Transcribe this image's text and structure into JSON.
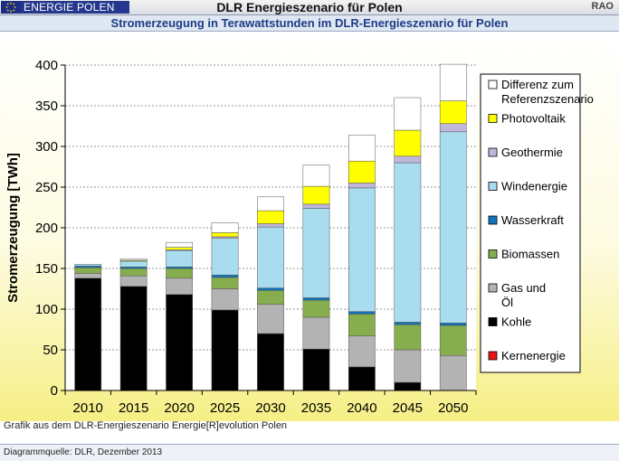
{
  "header": {
    "logo_text": "ENERGIE POLEN",
    "title": "DLR Energieszenario für Polen",
    "badge": "RAO"
  },
  "subtitle": "Stromerzeugung in Terawattstunden im DLR-Energieszenario für Polen",
  "footer": {
    "credit": "Grafik aus dem DLR-Energieszenario Energie[R]evolution Polen",
    "source": "Diagrammquelle: DLR, Dezember 2013"
  },
  "chart_data": {
    "type": "bar",
    "stacked": true,
    "title": "",
    "xlabel": "",
    "ylabel": "Stromerzeugung [TWh]",
    "ylim": [
      0,
      400
    ],
    "yticks": [
      0,
      50,
      100,
      150,
      200,
      250,
      300,
      350,
      400
    ],
    "grid": "horizontal dashed",
    "legend_position": "right",
    "categories": [
      "2010",
      "2015",
      "2020",
      "2025",
      "2030",
      "2035",
      "2040",
      "2045",
      "2050"
    ],
    "series": [
      {
        "name": "Kernenergie",
        "color": "#e8161a",
        "values": [
          0,
          0,
          0,
          0,
          0,
          0,
          0,
          0,
          0
        ]
      },
      {
        "name": "Kohle",
        "color": "#000000",
        "values": [
          138,
          128,
          118,
          99,
          70,
          51,
          29,
          10,
          0
        ]
      },
      {
        "name": "Gas und Öl",
        "color": "#b3b3b3",
        "values": [
          6,
          13,
          20,
          26,
          36,
          39,
          38,
          40,
          43
        ]
      },
      {
        "name": "Biomassen",
        "color": "#86ad4e",
        "values": [
          7,
          9,
          12,
          14,
          17,
          21,
          27,
          31,
          37
        ]
      },
      {
        "name": "Wasserkraft",
        "color": "#0f74b9",
        "values": [
          2,
          2,
          2,
          3,
          3,
          3,
          3,
          3,
          3
        ]
      },
      {
        "name": "Windenergie",
        "color": "#a9dcef",
        "values": [
          2,
          7,
          20,
          45,
          75,
          110,
          152,
          196,
          235
        ]
      },
      {
        "name": "Geothermie",
        "color": "#c0b7dd",
        "values": [
          0,
          0,
          1,
          2,
          4,
          5,
          6,
          8,
          10
        ]
      },
      {
        "name": "Photovoltaik",
        "color": "#ffff00",
        "values": [
          0,
          1,
          3,
          5,
          16,
          22,
          27,
          32,
          28
        ]
      },
      {
        "name": "Differenz zum Referenzszenario",
        "color": "#ffffff",
        "values": [
          0,
          2,
          6,
          12,
          17,
          26,
          32,
          40,
          45
        ]
      }
    ]
  }
}
